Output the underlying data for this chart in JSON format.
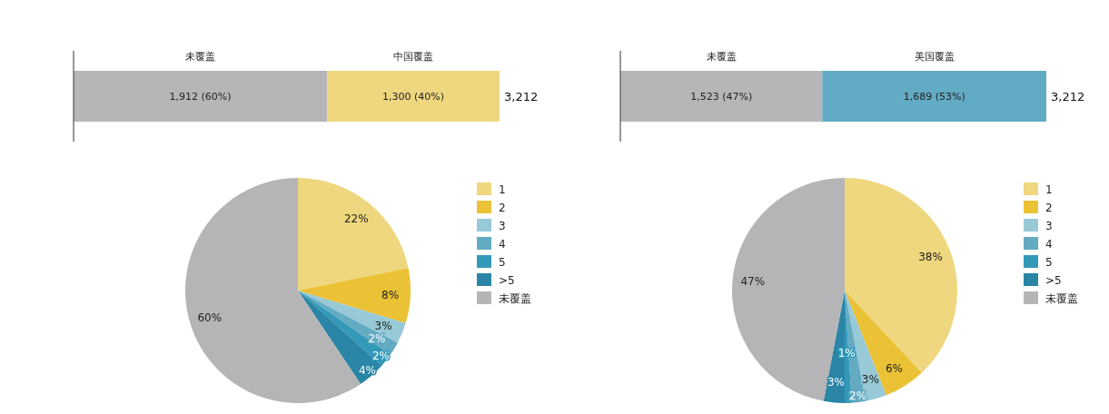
{
  "chart_data": [
    {
      "type": "bar",
      "orientation": "horizontal",
      "stacked": true,
      "legend": false,
      "categories": [
        null
      ],
      "series": [
        {
          "name": "未覆盖",
          "color": "#b6b6b8",
          "values": [
            1912
          ],
          "value_labels": [
            "1,912 (60%)"
          ]
        },
        {
          "name": "中国覆盖",
          "color": "#eed77e",
          "values": [
            1300
          ],
          "value_labels": [
            "1,300 (40%)"
          ]
        }
      ],
      "totals": [
        "3,212"
      ]
    },
    {
      "type": "pie",
      "legend": "right",
      "categories": [
        "1",
        "2",
        "3",
        "4",
        "5",
        ">5",
        "未覆盖"
      ],
      "values": [
        22,
        8,
        3,
        2,
        2,
        4,
        60
      ],
      "value_labels": [
        "22%",
        "8%",
        "3%",
        "2%",
        "2%",
        "4%",
        "60%"
      ],
      "colors": [
        "#eed77e",
        "#ebc235",
        "#98c9d6",
        "#63abc3",
        "#3399b8",
        "#2a85a6",
        "#b5b5b7"
      ]
    },
    {
      "type": "bar",
      "orientation": "horizontal",
      "stacked": true,
      "legend": false,
      "categories": [
        null
      ],
      "series": [
        {
          "name": "未覆盖",
          "color": "#b6b6b8",
          "values": [
            1523
          ],
          "value_labels": [
            "1,523 (47%)"
          ]
        },
        {
          "name": "美国覆盖",
          "color": "#62abc4",
          "values": [
            1689
          ],
          "value_labels": [
            "1,689 (53%)"
          ]
        }
      ],
      "totals": [
        "3,212"
      ]
    },
    {
      "type": "pie",
      "legend": "right",
      "categories": [
        "1",
        "2",
        "3",
        "4",
        "5",
        ">5",
        "未覆盖"
      ],
      "values": [
        38,
        6,
        3,
        2,
        1,
        3,
        47
      ],
      "value_labels": [
        "38%",
        "6%",
        "3%",
        "2%",
        "1%",
        "3%",
        "47%"
      ],
      "colors": [
        "#eed77e",
        "#ebc235",
        "#98c9d6",
        "#63abc3",
        "#3399b8",
        "#2a85a6",
        "#b5b5b7"
      ]
    }
  ]
}
